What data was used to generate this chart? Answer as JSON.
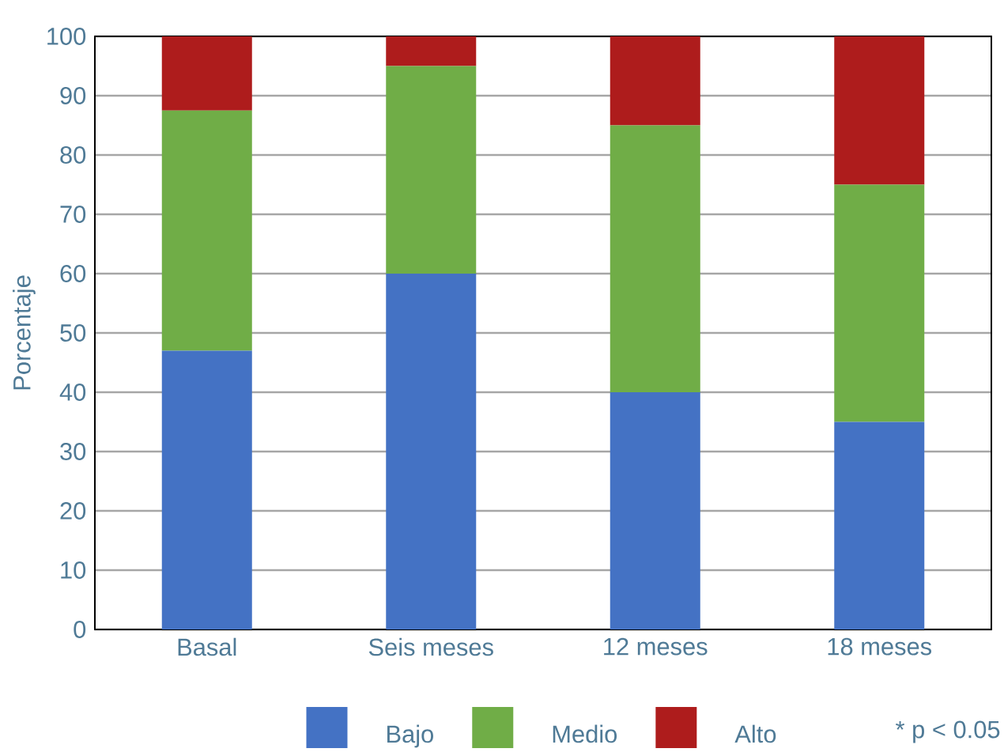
{
  "chart_data": {
    "type": "bar",
    "stacked": true,
    "ylabel": "Porcentaje",
    "categories": [
      "Basal",
      "Seis meses",
      "12 meses",
      "18 meses"
    ],
    "series": [
      {
        "name": "Bajo",
        "color": "#4472c4",
        "values": [
          47,
          60,
          40,
          35
        ]
      },
      {
        "name": "Medio",
        "color": "#70ad47",
        "values": [
          40.5,
          35,
          45,
          40
        ]
      },
      {
        "name": "Alto",
        "color": "#ae1c1c",
        "values": [
          12.5,
          5,
          15,
          25
        ]
      }
    ],
    "ylim": [
      0,
      100
    ],
    "yticks": [
      0,
      10,
      20,
      30,
      40,
      50,
      60,
      70,
      80,
      90,
      100
    ],
    "grid": "y",
    "legend": "bottom",
    "annotations": [
      "* p < 0.05"
    ]
  }
}
